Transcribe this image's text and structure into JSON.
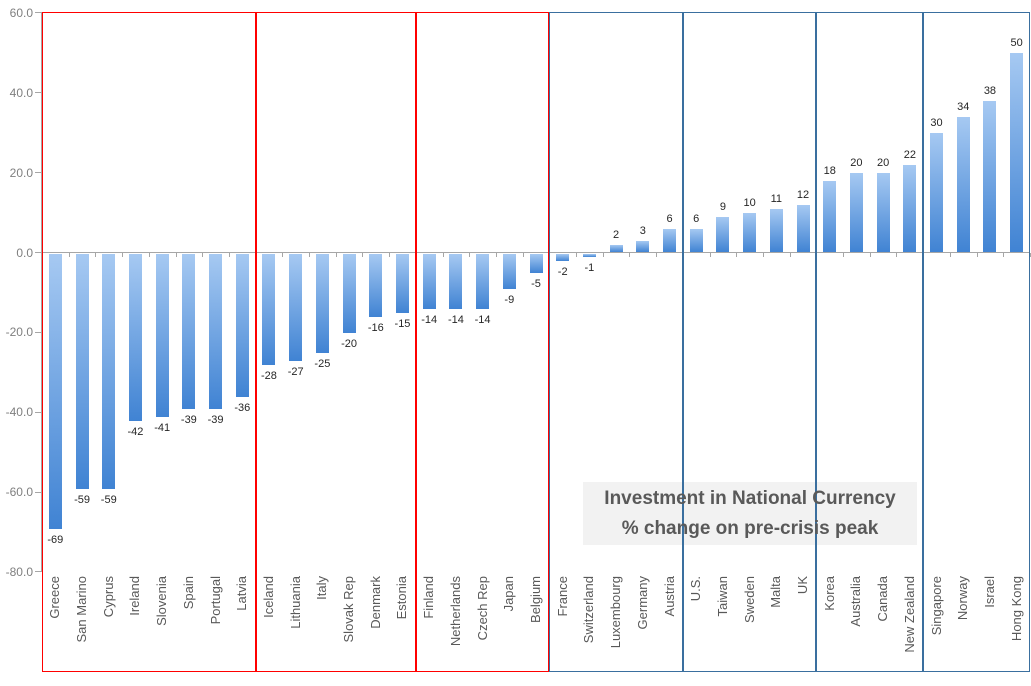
{
  "chart_data": {
    "type": "bar",
    "title": "Investment in National Currency",
    "subtitle": "% change on pre-crisis peak",
    "xlabel": "",
    "ylabel": "",
    "ylim": [
      -80,
      60
    ],
    "ytick_values": [
      60,
      40,
      20,
      0,
      -20,
      -40,
      -60,
      -80
    ],
    "ytick_labels": [
      "60.0",
      "40.0",
      "20.0",
      "0.0",
      "-20.0",
      "-40.0",
      "-60.0",
      "-80.0"
    ],
    "grid": false,
    "legend_position": "none",
    "value_labels_shown": true,
    "groups": [
      {
        "frame": "red",
        "categories": [
          "Greece",
          "San Marino",
          "Cyprus",
          "Ireland",
          "Slovenia",
          "Spain",
          "Portugal",
          "Latvia"
        ],
        "values": [
          -69,
          -59,
          -59,
          -42,
          -41,
          -39,
          -39,
          -36
        ]
      },
      {
        "frame": "red",
        "categories": [
          "Iceland",
          "Lithuania",
          "Italy",
          "Slovak Rep",
          "Denmark",
          "Estonia"
        ],
        "values": [
          -28,
          -27,
          -25,
          -20,
          -16,
          -15
        ]
      },
      {
        "frame": "red",
        "categories": [
          "Finland",
          "Netherlands",
          "Czech Rep",
          "Japan",
          "Belgium"
        ],
        "values": [
          -14,
          -14,
          -14,
          -9,
          -5
        ]
      },
      {
        "frame": "blue",
        "categories": [
          "France",
          "Switzerland",
          "Luxembourg",
          "Germany",
          "Austria"
        ],
        "values": [
          -2,
          -1,
          2,
          3,
          6
        ]
      },
      {
        "frame": "blue",
        "categories": [
          "U.S.",
          "Taiwan",
          "Sweden",
          "Malta",
          "UK"
        ],
        "values": [
          6,
          9,
          10,
          11,
          12
        ]
      },
      {
        "frame": "blue",
        "categories": [
          "Korea",
          "Australia",
          "Canada",
          "New Zealand"
        ],
        "values": [
          18,
          20,
          20,
          22
        ]
      },
      {
        "frame": "blue",
        "categories": [
          "Singapore",
          "Norway",
          "Israel",
          "Hong Kong"
        ],
        "values": [
          30,
          34,
          38,
          50
        ]
      }
    ]
  },
  "colors": {
    "frame_red": "#ff0000",
    "frame_blue": "#3a6f9f",
    "bar_gradient_top": "#a6c9f2",
    "bar_gradient_bottom": "#4083d3",
    "axis_line": "#a6a6a6",
    "ytick_label_color": "#7f7f7f",
    "category_label_color": "#595959",
    "value_label_color": "#262626",
    "title_text_color": "#595959",
    "title_bg": "#f2f2f2",
    "background": "#ffffff"
  }
}
